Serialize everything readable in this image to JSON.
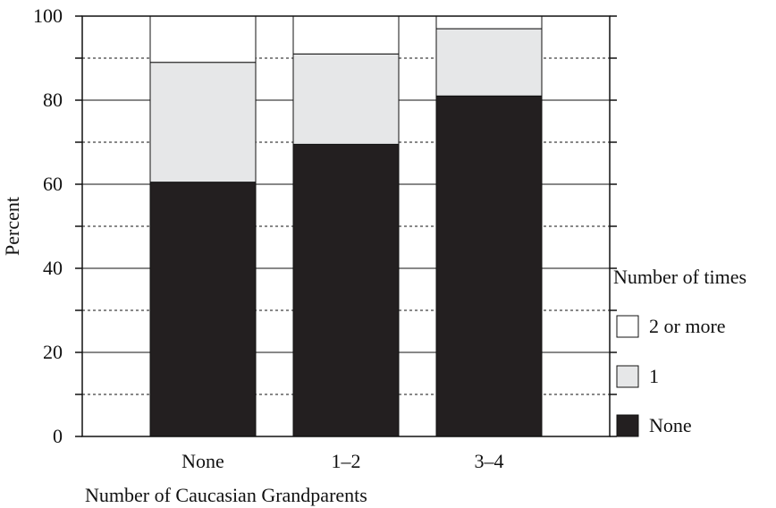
{
  "chart_data": {
    "type": "bar",
    "stacked": true,
    "categories": [
      "None",
      "1–2",
      "3–4"
    ],
    "series": [
      {
        "name": "None",
        "values": [
          60.5,
          69.5,
          81
        ],
        "color": "#231f20"
      },
      {
        "name": "1",
        "values": [
          28.5,
          21.5,
          16
        ],
        "color": "#e6e7e8"
      },
      {
        "name": "2 or more",
        "values": [
          11,
          9,
          3
        ],
        "color": "#ffffff"
      }
    ],
    "xlabel": "Number of Caucasian Grandparents",
    "ylabel": "Percent",
    "ylim": [
      0,
      100
    ],
    "yticks": [
      0,
      20,
      40,
      60,
      80,
      100
    ],
    "ytick_labels": [
      "0",
      "20",
      "40",
      "60",
      "80",
      "100"
    ],
    "grid": {
      "major": [
        20,
        40,
        60,
        80
      ],
      "minor_dashed": [
        10,
        30,
        50,
        70,
        90
      ]
    },
    "legend": {
      "title": "Number of times",
      "placement": "right",
      "entries": [
        {
          "label": "2 or more",
          "color": "#ffffff"
        },
        {
          "label": "1",
          "color": "#e6e7e8"
        },
        {
          "label": "None",
          "color": "#231f20"
        }
      ]
    }
  }
}
